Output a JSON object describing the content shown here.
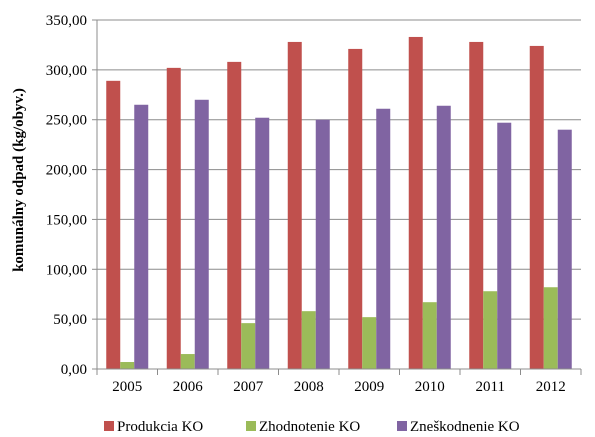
{
  "chart_data": {
    "type": "bar",
    "categories": [
      "2005",
      "2006",
      "2007",
      "2008",
      "2009",
      "2010",
      "2011",
      "2012"
    ],
    "series": [
      {
        "name": "Produkcia KO",
        "color": "#c0504d",
        "values": [
          289,
          302,
          308,
          328,
          321,
          333,
          328,
          324
        ]
      },
      {
        "name": "Zhodnotenie KO",
        "color": "#9bbb59",
        "values": [
          7,
          15,
          46,
          58,
          52,
          67,
          78,
          82
        ]
      },
      {
        "name": "Zneškodnenie KO",
        "color": "#8064a2",
        "values": [
          265,
          270,
          252,
          250,
          261,
          264,
          247,
          240
        ]
      }
    ],
    "ylabel": "komunálny odpad (kg/obyv.)",
    "xlabel": "",
    "title": "",
    "ylim": [
      0,
      350
    ],
    "yticks": [
      "0,00",
      "50,00",
      "100,00",
      "150,00",
      "200,00",
      "250,00",
      "300,00",
      "350,00"
    ],
    "grid": true,
    "legend_position": "bottom"
  }
}
